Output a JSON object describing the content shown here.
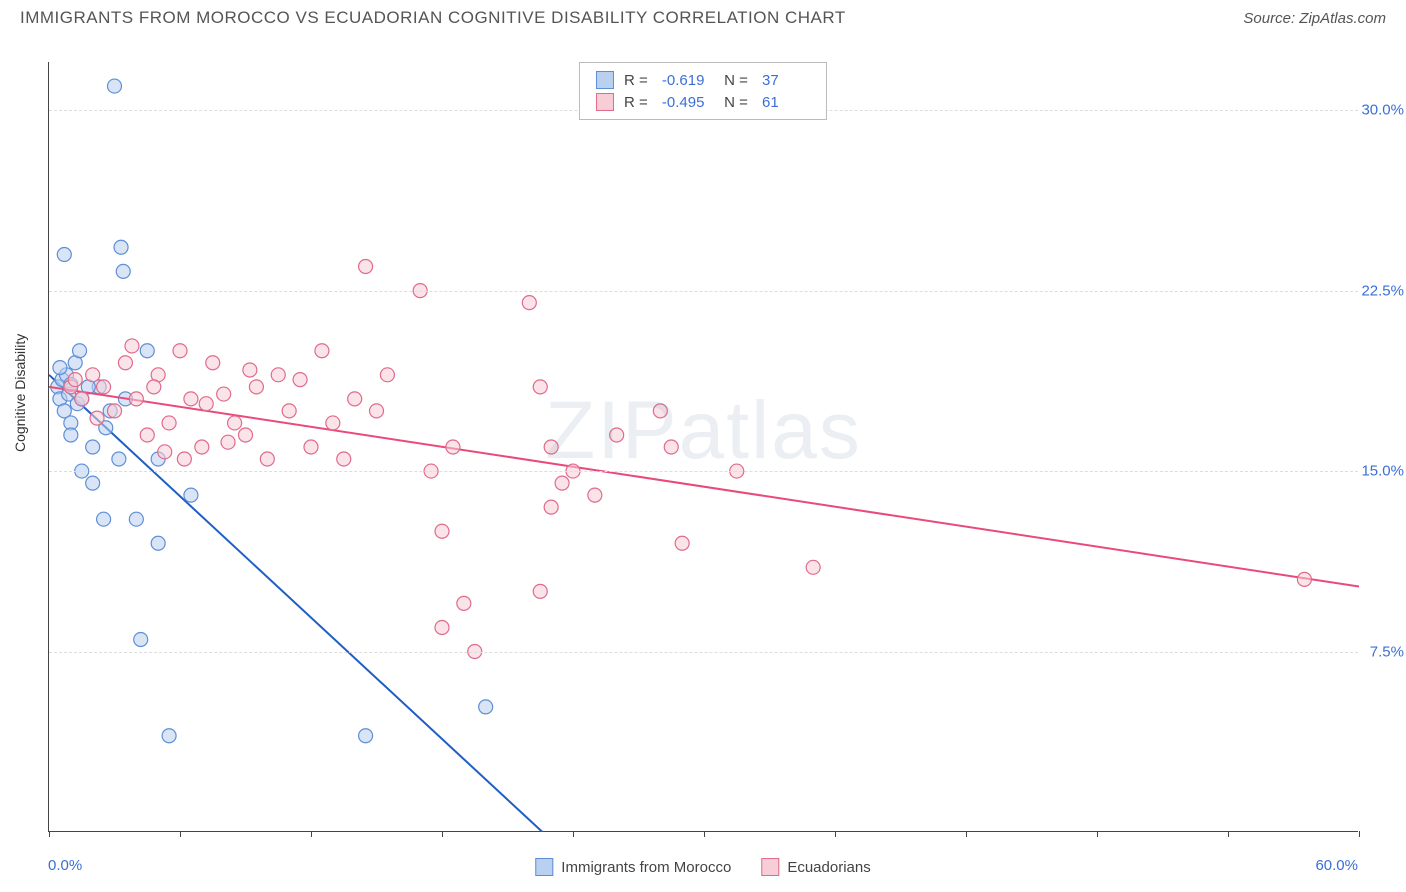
{
  "title": "IMMIGRANTS FROM MOROCCO VS ECUADORIAN COGNITIVE DISABILITY CORRELATION CHART",
  "source_prefix": "Source: ",
  "source_name": "ZipAtlas.com",
  "watermark": "ZIPatlas",
  "y_axis_title": "Cognitive Disability",
  "chart": {
    "type": "scatter",
    "xlim": [
      0,
      60
    ],
    "ylim": [
      0,
      32
    ],
    "x_ticks": [
      0,
      6,
      12,
      18,
      24,
      30,
      36,
      42,
      48,
      54,
      60
    ],
    "x_tick_labels_shown": {
      "0": "0.0%",
      "60": "60.0%"
    },
    "y_ticks": [
      7.5,
      15.0,
      22.5,
      30.0
    ],
    "y_tick_labels": [
      "7.5%",
      "15.0%",
      "22.5%",
      "30.0%"
    ],
    "background_color": "#ffffff",
    "grid_color": "#dddddd",
    "axis_color": "#444444",
    "marker_radius": 7,
    "marker_stroke_width": 1.2,
    "line_width": 2,
    "series": [
      {
        "name": "Immigrants from Morocco",
        "fill": "#b9d0f0",
        "stroke": "#5e8fd6",
        "line_color": "#1f5fc4",
        "R": "-0.619",
        "N": "37",
        "trend": {
          "x1": 0,
          "y1": 19.0,
          "x2": 22.6,
          "y2": 0
        },
        "points": [
          [
            0.4,
            18.5
          ],
          [
            0.5,
            18.0
          ],
          [
            0.6,
            18.8
          ],
          [
            0.7,
            17.5
          ],
          [
            0.8,
            19.0
          ],
          [
            0.9,
            18.2
          ],
          [
            1.0,
            18.6
          ],
          [
            1.0,
            17.0
          ],
          [
            1.2,
            19.5
          ],
          [
            1.3,
            17.8
          ],
          [
            1.4,
            20.0
          ],
          [
            1.5,
            18.0
          ],
          [
            0.7,
            24.0
          ],
          [
            1.0,
            16.5
          ],
          [
            1.5,
            15.0
          ],
          [
            2.0,
            16.0
          ],
          [
            2.0,
            14.5
          ],
          [
            2.3,
            18.5
          ],
          [
            2.5,
            13.0
          ],
          [
            2.8,
            17.5
          ],
          [
            3.0,
            31.0
          ],
          [
            3.2,
            15.5
          ],
          [
            3.3,
            24.3
          ],
          [
            3.4,
            23.3
          ],
          [
            3.5,
            18.0
          ],
          [
            4.0,
            13.0
          ],
          [
            4.5,
            20.0
          ],
          [
            5.0,
            12.0
          ],
          [
            5.5,
            4.0
          ],
          [
            6.5,
            14.0
          ],
          [
            4.2,
            8.0
          ],
          [
            5.0,
            15.5
          ],
          [
            1.8,
            18.5
          ],
          [
            2.6,
            16.8
          ],
          [
            0.5,
            19.3
          ],
          [
            14.5,
            4.0
          ],
          [
            20.0,
            5.2
          ]
        ]
      },
      {
        "name": "Ecuadorians",
        "fill": "#f7cdd7",
        "stroke": "#e06b8a",
        "line_color": "#e84a7a",
        "R": "-0.495",
        "N": "61",
        "trend": {
          "x1": 0,
          "y1": 18.5,
          "x2": 60,
          "y2": 10.2
        },
        "points": [
          [
            1.0,
            18.5
          ],
          [
            1.5,
            18.0
          ],
          [
            2.0,
            19.0
          ],
          [
            2.5,
            18.5
          ],
          [
            3.0,
            17.5
          ],
          [
            3.5,
            19.5
          ],
          [
            4.0,
            18.0
          ],
          [
            4.5,
            16.5
          ],
          [
            5.0,
            19.0
          ],
          [
            5.5,
            17.0
          ],
          [
            6.0,
            20.0
          ],
          [
            6.5,
            18.0
          ],
          [
            7.0,
            16.0
          ],
          [
            7.5,
            19.5
          ],
          [
            8.0,
            18.2
          ],
          [
            8.5,
            17.0
          ],
          [
            9.0,
            16.5
          ],
          [
            9.5,
            18.5
          ],
          [
            10.0,
            15.5
          ],
          [
            10.5,
            19.0
          ],
          [
            11.0,
            17.5
          ],
          [
            11.5,
            18.8
          ],
          [
            12.0,
            16.0
          ],
          [
            12.5,
            20.0
          ],
          [
            13.0,
            17.0
          ],
          [
            13.5,
            15.5
          ],
          [
            14.0,
            18.0
          ],
          [
            14.5,
            23.5
          ],
          [
            15.0,
            17.5
          ],
          [
            15.5,
            19.0
          ],
          [
            17.0,
            22.5
          ],
          [
            17.5,
            15.0
          ],
          [
            18.0,
            12.5
          ],
          [
            18.5,
            16.0
          ],
          [
            19.0,
            9.5
          ],
          [
            22.0,
            22.0
          ],
          [
            22.5,
            18.5
          ],
          [
            23.0,
            13.5
          ],
          [
            23.0,
            16.0
          ],
          [
            18.0,
            8.5
          ],
          [
            1.2,
            18.8
          ],
          [
            2.2,
            17.2
          ],
          [
            4.8,
            18.5
          ],
          [
            6.2,
            15.5
          ],
          [
            8.2,
            16.2
          ],
          [
            9.2,
            19.2
          ],
          [
            19.5,
            7.5
          ],
          [
            23.5,
            14.5
          ],
          [
            22.5,
            10.0
          ],
          [
            24.0,
            15.0
          ],
          [
            25.0,
            14.0
          ],
          [
            26.0,
            16.5
          ],
          [
            28.0,
            17.5
          ],
          [
            28.5,
            16.0
          ],
          [
            29.0,
            12.0
          ],
          [
            31.5,
            15.0
          ],
          [
            35.0,
            11.0
          ],
          [
            57.5,
            10.5
          ],
          [
            3.8,
            20.2
          ],
          [
            5.3,
            15.8
          ],
          [
            7.2,
            17.8
          ]
        ]
      }
    ]
  },
  "bottom_legend": {
    "items": [
      {
        "label": "Immigrants from Morocco",
        "fill": "#b9d0f0",
        "stroke": "#5e8fd6"
      },
      {
        "label": "Ecuadorians",
        "fill": "#f7cdd7",
        "stroke": "#e06b8a"
      }
    ]
  }
}
